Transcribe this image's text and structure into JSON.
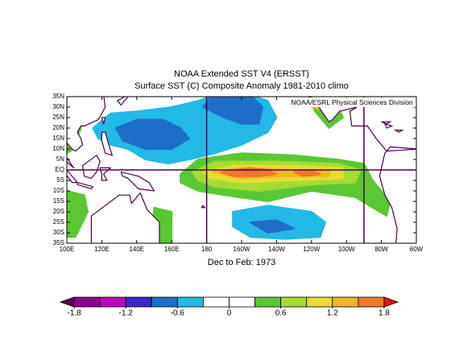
{
  "title": "NOAA Extended SST V4 (ERSST)",
  "subtitle": "Surface SST (C) Composite Anomaly 1981-2010 climo",
  "credit": "NOAA/ESRL Physical Sciences Division",
  "period": "Dec to Feb: 1973",
  "map": {
    "xlim": [
      100,
      300
    ],
    "ylim": [
      -35,
      35
    ],
    "xticks": [
      {
        "value": 100,
        "label": "100E"
      },
      {
        "value": 120,
        "label": "120E"
      },
      {
        "value": 140,
        "label": "140E"
      },
      {
        "value": 160,
        "label": "160E"
      },
      180,
      {
        "value": 200,
        "label": "160W"
      },
      {
        "value": 220,
        "label": "140W"
      },
      {
        "value": 240,
        "label": "120W"
      },
      {
        "value": 260,
        "label": "100W"
      },
      {
        "value": 280,
        "label": "80W"
      },
      {
        "value": 300,
        "label": "60W"
      }
    ],
    "yticks": [
      {
        "value": 35,
        "label": "35N"
      },
      {
        "value": 30,
        "label": "30N"
      },
      {
        "value": 25,
        "label": "25N"
      },
      {
        "value": 20,
        "label": "20N"
      },
      {
        "value": 15,
        "label": "15N"
      },
      {
        "value": 10,
        "label": "10N"
      },
      {
        "value": 5,
        "label": "5N"
      },
      {
        "value": 0,
        "label": "EQ"
      },
      {
        "value": -5,
        "label": "5S"
      },
      {
        "value": -10,
        "label": "10S"
      },
      {
        "value": -15,
        "label": "15S"
      },
      {
        "value": -20,
        "label": "20S"
      },
      {
        "value": -25,
        "label": "25S"
      },
      {
        "value": -30,
        "label": "30S"
      },
      {
        "value": -35,
        "label": "35S"
      }
    ]
  },
  "colorbar": {
    "colors": [
      "#5a0050",
      "#8c008c",
      "#c000c0",
      "#3a28c8",
      "#1e6ec8",
      "#23b9e6",
      "#ffffff",
      "#ffffff",
      "#5ac832",
      "#a5dc32",
      "#e6dc32",
      "#f0b428",
      "#f07828",
      "#e61414"
    ],
    "ticks": [
      -1.8,
      -1.2,
      -0.6,
      0,
      0.6,
      1.2,
      1.8
    ]
  }
}
